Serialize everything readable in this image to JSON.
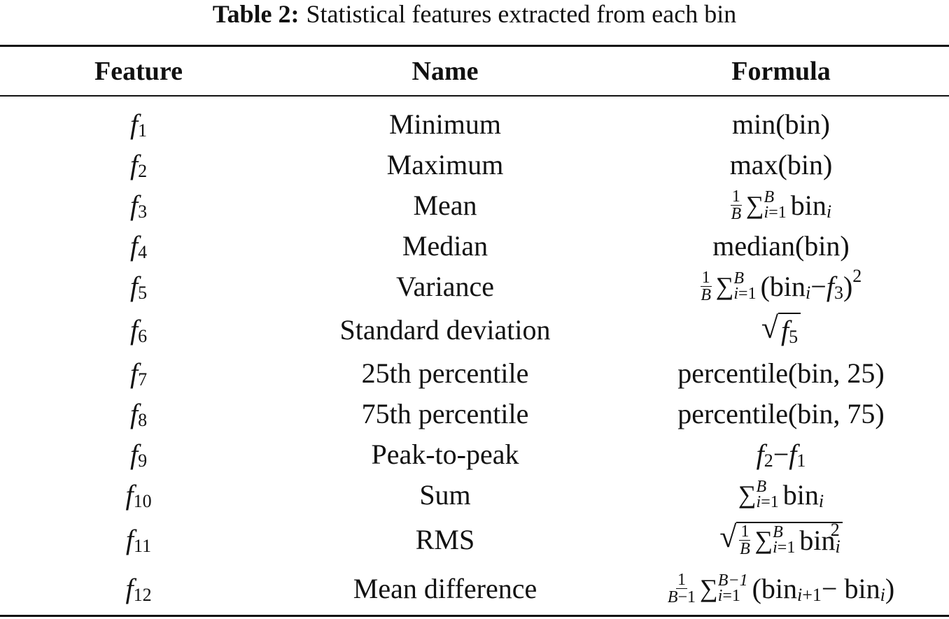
{
  "caption": {
    "label": "Table 2:",
    "text": "Statistical features extracted from each bin"
  },
  "headers": {
    "feature": "Feature",
    "name": "Name",
    "formula": "Formula"
  },
  "rows": [
    {
      "feature_symbol": "f",
      "feature_index": "1",
      "name": "Minimum",
      "formula": "min(bin)"
    },
    {
      "feature_symbol": "f",
      "feature_index": "2",
      "name": "Maximum",
      "formula": "max(bin)"
    },
    {
      "feature_symbol": "f",
      "feature_index": "3",
      "name": "Mean",
      "formula": "1/B Σ_{i=1}^{B} bin_i"
    },
    {
      "feature_symbol": "f",
      "feature_index": "4",
      "name": "Median",
      "formula": "median(bin)"
    },
    {
      "feature_symbol": "f",
      "feature_index": "5",
      "name": "Variance",
      "formula": "1/B Σ_{i=1}^{B}(bin_i − f_3)^2"
    },
    {
      "feature_symbol": "f",
      "feature_index": "6",
      "name": "Standard deviation",
      "formula": "√f_5"
    },
    {
      "feature_symbol": "f",
      "feature_index": "7",
      "name": "25th percentile",
      "formula": "percentile(bin, 25)"
    },
    {
      "feature_symbol": "f",
      "feature_index": "8",
      "name": "75th percentile",
      "formula": "percentile(bin, 75)"
    },
    {
      "feature_symbol": "f",
      "feature_index": "9",
      "name": "Peak-to-peak",
      "formula": "f_2 − f_1"
    },
    {
      "feature_symbol": "f",
      "feature_index": "10",
      "name": "Sum",
      "formula": "Σ_{i=1}^{B} bin_i"
    },
    {
      "feature_symbol": "f",
      "feature_index": "11",
      "name": "RMS",
      "formula": "√(1/B Σ_{i=1}^{B} bin_i^2)"
    },
    {
      "feature_symbol": "f",
      "feature_index": "12",
      "name": "Mean difference",
      "formula": "1/(B−1) Σ_{i=1}^{B−1}(bin_{i+1} − bin_i)"
    }
  ]
}
